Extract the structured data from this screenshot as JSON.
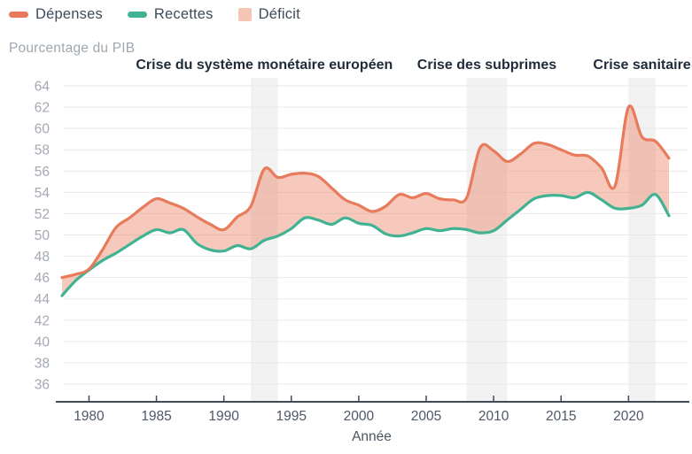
{
  "legend": {
    "items": [
      {
        "label": "Dépenses",
        "color": "#E87B5C",
        "swatch": "line"
      },
      {
        "label": "Recettes",
        "color": "#41B392",
        "swatch": "line"
      },
      {
        "label": "Déficit",
        "color": "#F6C6B5",
        "swatch": "square"
      }
    ]
  },
  "subtitle": "Pourcentage du PIB",
  "annotations": [
    {
      "label": "Crise du système monétaire européen",
      "from": 1992,
      "to": 1994
    },
    {
      "label": "Crise des subprimes",
      "from": 2008,
      "to": 2011
    },
    {
      "label": "Crise sanitaire",
      "from": 2020,
      "to": 2022
    }
  ],
  "x_axis": {
    "label": "Année",
    "ticks": [
      1980,
      1985,
      1990,
      1995,
      2000,
      2005,
      2010,
      2015,
      2020
    ]
  },
  "y_axis": {
    "ticks": [
      36,
      38,
      40,
      42,
      44,
      46,
      48,
      50,
      52,
      54,
      56,
      58,
      60,
      62,
      64
    ]
  },
  "colors": {
    "depenses": "#E87B5C",
    "recettes": "#41B392",
    "deficit_fill": "rgba(233,126,95,0.42)",
    "crisis_band": "#F2F2F2",
    "gridline": "#E9E9EA",
    "axis_line": "#3E4C59",
    "y_tick_label": "#A2A9B4",
    "x_tick_label": "#4E5866",
    "axis_title": "#4A5560",
    "annotation_text": "#1F2B38"
  },
  "chart_data": {
    "type": "line",
    "title": "",
    "xlabel": "Année",
    "ylabel": "Pourcentage du PIB",
    "xlim": [
      1978,
      2023
    ],
    "ylim": [
      36,
      64
    ],
    "grid": true,
    "legend_position": "top-left",
    "x": [
      1978,
      1979,
      1980,
      1981,
      1982,
      1983,
      1984,
      1985,
      1986,
      1987,
      1988,
      1989,
      1990,
      1991,
      1992,
      1993,
      1994,
      1995,
      1996,
      1997,
      1998,
      1999,
      2000,
      2001,
      2002,
      2003,
      2004,
      2005,
      2006,
      2007,
      2008,
      2009,
      2010,
      2011,
      2012,
      2013,
      2014,
      2015,
      2016,
      2017,
      2018,
      2019,
      2020,
      2021,
      2022,
      2023
    ],
    "series": [
      {
        "name": "Dépenses",
        "color": "#E87B5C",
        "values": [
          46.0,
          46.3,
          46.8,
          48.6,
          50.7,
          51.6,
          52.6,
          53.4,
          53.0,
          52.5,
          51.7,
          51.0,
          50.5,
          51.7,
          52.7,
          56.2,
          55.4,
          55.7,
          55.8,
          55.5,
          54.4,
          53.3,
          52.8,
          52.2,
          52.7,
          53.8,
          53.5,
          53.9,
          53.4,
          53.3,
          53.5,
          58.2,
          57.9,
          56.9,
          57.6,
          58.6,
          58.5,
          58.0,
          57.5,
          57.4,
          56.3,
          54.6,
          62.0,
          59.2,
          58.8,
          57.2
        ]
      },
      {
        "name": "Recettes",
        "color": "#41B392",
        "values": [
          44.3,
          45.7,
          46.7,
          47.6,
          48.3,
          49.1,
          49.9,
          50.5,
          50.2,
          50.5,
          49.2,
          48.6,
          48.5,
          49.0,
          48.7,
          49.5,
          49.9,
          50.6,
          51.6,
          51.4,
          51.0,
          51.6,
          51.1,
          50.9,
          50.1,
          49.9,
          50.2,
          50.6,
          50.4,
          50.6,
          50.5,
          50.2,
          50.4,
          51.4,
          52.4,
          53.4,
          53.7,
          53.7,
          53.5,
          54.0,
          53.3,
          52.5,
          52.5,
          52.8,
          53.8,
          51.8
        ]
      }
    ],
    "area_between": {
      "name": "Déficit",
      "upper": "Dépenses",
      "lower": "Recettes",
      "fill": "rgba(233,126,95,0.42)"
    }
  }
}
